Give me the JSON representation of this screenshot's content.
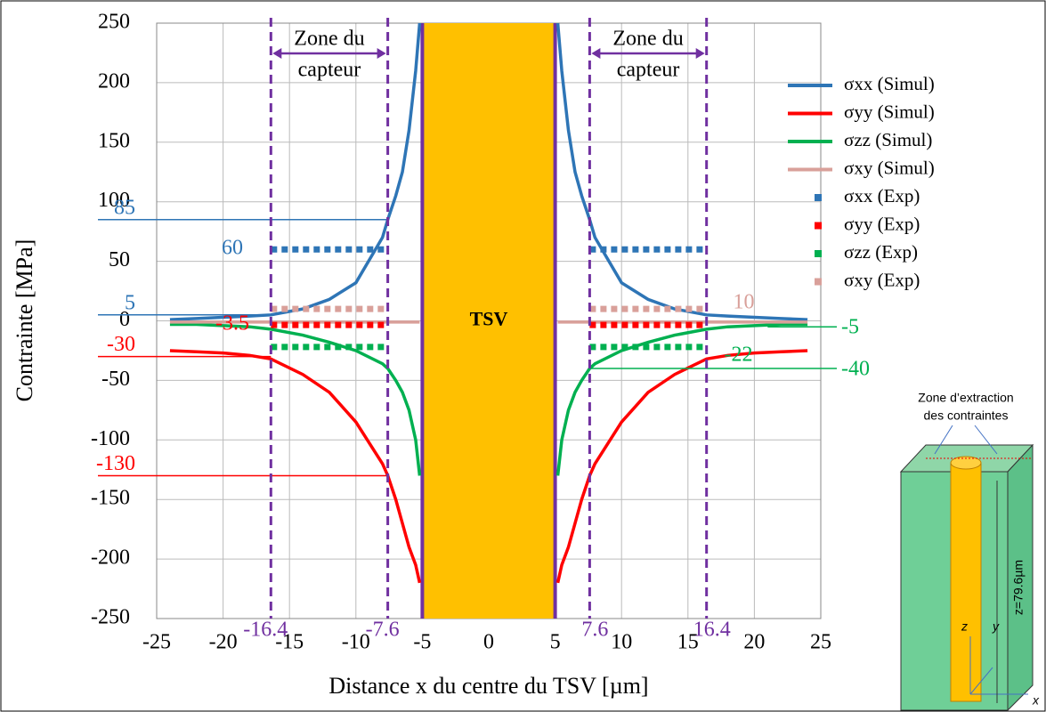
{
  "chart_data": {
    "type": "line",
    "xlabel": "Distance x du centre du TSV [µm]",
    "ylabel": "Contrainte [MPa]",
    "xlim": [
      -25,
      25
    ],
    "ylim": [
      -250,
      250
    ],
    "xticks": [
      -25,
      -20,
      -15,
      -10,
      -5,
      0,
      5,
      10,
      15,
      20,
      25
    ],
    "yticks": [
      -250,
      -200,
      -150,
      -100,
      -50,
      0,
      50,
      100,
      150,
      200,
      250
    ],
    "grid": true,
    "legend": "upper right",
    "x": [
      -24,
      -22,
      -20,
      -18,
      -16.4,
      -14,
      -12,
      -10,
      -8,
      -7.6,
      -7,
      -6.5,
      -6,
      -5.5,
      -5.2,
      0,
      5.2,
      5.5,
      6,
      6.5,
      7,
      7.6,
      8,
      10,
      12,
      14,
      16.4,
      18,
      20,
      22,
      24
    ],
    "series": [
      {
        "name": "σxx (Simul)",
        "color": "#2e75b6",
        "values": [
          1,
          2,
          3,
          4,
          5,
          10,
          18,
          32,
          70,
          85,
          105,
          125,
          160,
          210,
          250,
          null,
          250,
          210,
          160,
          125,
          105,
          85,
          70,
          32,
          18,
          10,
          5,
          4,
          3,
          2,
          1
        ]
      },
      {
        "name": "σyy (Simul)",
        "color": "#ff0000",
        "values": [
          -25,
          -26,
          -27,
          -29,
          -32,
          -45,
          -60,
          -85,
          -120,
          -130,
          -150,
          -170,
          -190,
          -205,
          -220,
          null,
          -220,
          -205,
          -190,
          -170,
          -150,
          -130,
          -120,
          -85,
          -60,
          -45,
          -32,
          -29,
          -27,
          -26,
          -25
        ]
      },
      {
        "name": "σzz (Simul)",
        "color": "#00b050",
        "values": [
          -3,
          -3,
          -4,
          -5,
          -7,
          -12,
          -18,
          -25,
          -36,
          -40,
          -50,
          -60,
          -75,
          -100,
          -130,
          null,
          -130,
          -100,
          -75,
          -60,
          -50,
          -40,
          -36,
          -25,
          -18,
          -12,
          -7,
          -5,
          -4,
          -3,
          -3
        ]
      },
      {
        "name": "σxy (Simul)",
        "color": "#d9a09a",
        "values": [
          -1,
          -1,
          -1,
          -1,
          -1,
          -1,
          -1,
          -1,
          -1,
          -1,
          -1,
          -1,
          -1,
          -1,
          -1,
          null,
          -1,
          -1,
          -1,
          -1,
          -1,
          -1,
          -1,
          -1,
          -1,
          -1,
          -1,
          -1,
          -1,
          -1,
          -1
        ]
      }
    ],
    "exp_x": [
      -16.4,
      -7.6,
      0,
      7.6,
      16.4
    ],
    "exp_series": [
      {
        "name": "σxx (Exp)",
        "color": "#2e75b6",
        "values": [
          60,
          60,
          null,
          60,
          60
        ]
      },
      {
        "name": "σyy (Exp)",
        "color": "#ff0000",
        "values": [
          -3.5,
          -3.5,
          null,
          -3.5,
          -3.5
        ]
      },
      {
        "name": "σzz (Exp)",
        "color": "#00b050",
        "values": [
          -22,
          -22,
          null,
          -22,
          -22
        ]
      },
      {
        "name": "σxy (Exp)",
        "color": "#d9a09a",
        "values": [
          10,
          10,
          null,
          10,
          10
        ]
      }
    ],
    "reference_lines": [
      {
        "value": 85,
        "x": -7.6,
        "color": "#2e75b6"
      },
      {
        "value": 5,
        "x": -16.4,
        "color": "#2e75b6"
      },
      {
        "value": -30,
        "x": -16.4,
        "color": "#ff0000"
      },
      {
        "value": -130,
        "x": -7.6,
        "color": "#ff0000"
      },
      {
        "value": -5,
        "x": 21,
        "color": "#00b050"
      },
      {
        "value": -40,
        "x": 7.6,
        "color": "#00b050"
      }
    ],
    "markers": [
      -16.4,
      -7.6,
      7.6,
      16.4
    ],
    "zone_label": [
      "Zone du",
      "capteur"
    ],
    "tsv": {
      "label": "TSV",
      "range": [
        -5,
        5
      ],
      "color": "#ffc000"
    },
    "inset": {
      "title": [
        "Zone d’extraction",
        "des contraintes"
      ],
      "height": "z=79.6µm",
      "axes": [
        "z",
        "y",
        "x"
      ]
    }
  }
}
